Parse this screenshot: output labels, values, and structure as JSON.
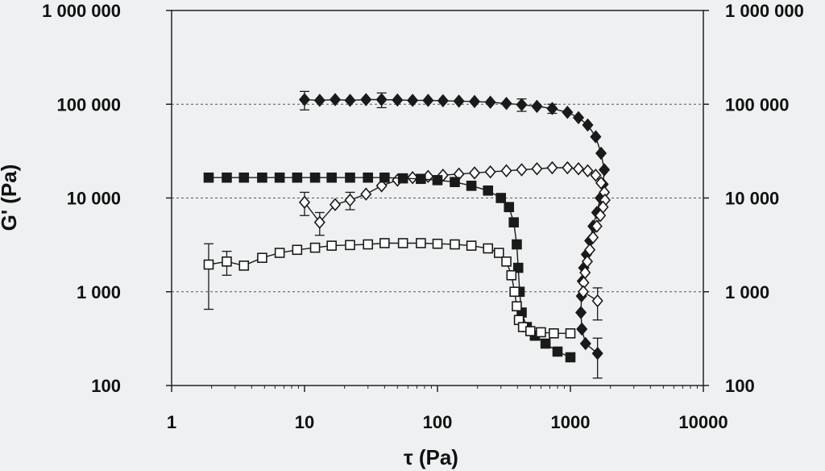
{
  "chart_data": {
    "type": "scatter",
    "xlabel": "τ (Pa)",
    "ylabel": "G' (Pa)",
    "x_scale": "log",
    "y_scale": "log",
    "xlim": [
      1,
      10000
    ],
    "ylim": [
      100,
      1000000
    ],
    "x_tick_labels": [
      "1",
      "10",
      "100",
      "1000",
      "10000"
    ],
    "y_tick_labels": [
      "100",
      "1 000",
      "10 000",
      "100 000",
      "1 000 000"
    ],
    "y_tick_values": [
      100,
      1000,
      10000,
      100000,
      1000000
    ],
    "grid": "horizontal dashed",
    "series": [
      {
        "marker": "filled-diamond",
        "color": "#1a1a1a",
        "points": [
          [
            10,
            112000,
            25000
          ],
          [
            13,
            110000,
            0
          ],
          [
            17,
            112000,
            0
          ],
          [
            22,
            110000,
            0
          ],
          [
            29,
            112000,
            0
          ],
          [
            38,
            112000,
            20000
          ],
          [
            50,
            111000,
            0
          ],
          [
            65,
            110000,
            0
          ],
          [
            85,
            110000,
            0
          ],
          [
            110,
            109000,
            0
          ],
          [
            145,
            108000,
            0
          ],
          [
            190,
            107000,
            0
          ],
          [
            250,
            105000,
            0
          ],
          [
            330,
            102000,
            0
          ],
          [
            430,
            99000,
            15000
          ],
          [
            560,
            95000,
            0
          ],
          [
            730,
            90000,
            10000
          ],
          [
            950,
            82000,
            0
          ],
          [
            1150,
            72000,
            0
          ],
          [
            1350,
            60000,
            0
          ],
          [
            1550,
            45000,
            0
          ],
          [
            1700,
            30000,
            0
          ],
          [
            1800,
            20000,
            0
          ],
          [
            1760,
            14000,
            0
          ],
          [
            1680,
            10000,
            0
          ],
          [
            1580,
            7000,
            0
          ],
          [
            1480,
            5000,
            0
          ],
          [
            1400,
            3500,
            0
          ],
          [
            1320,
            2500,
            0
          ],
          [
            1260,
            1800,
            0
          ],
          [
            1230,
            1300,
            0
          ],
          [
            1210,
            900,
            0
          ],
          [
            1200,
            600,
            0
          ],
          [
            1220,
            400,
            0
          ],
          [
            1300,
            280,
            0
          ],
          [
            1600,
            220,
            100
          ]
        ]
      },
      {
        "marker": "open-diamond",
        "color": "#1a1a1a",
        "points": [
          [
            10,
            9000,
            2500
          ],
          [
            13,
            5500,
            1500
          ],
          [
            17,
            8500,
            0
          ],
          [
            22,
            9500,
            2000
          ],
          [
            29,
            11000,
            0
          ],
          [
            38,
            13500,
            0
          ],
          [
            50,
            15500,
            0
          ],
          [
            65,
            16500,
            0
          ],
          [
            85,
            17000,
            0
          ],
          [
            110,
            17500,
            0
          ],
          [
            145,
            18000,
            0
          ],
          [
            190,
            18500,
            0
          ],
          [
            250,
            19000,
            0
          ],
          [
            330,
            19500,
            0
          ],
          [
            430,
            20000,
            0
          ],
          [
            560,
            20500,
            0
          ],
          [
            730,
            21000,
            0
          ],
          [
            950,
            21000,
            0
          ],
          [
            1150,
            20500,
            0
          ],
          [
            1350,
            19500,
            0
          ],
          [
            1550,
            17500,
            0
          ],
          [
            1700,
            14500,
            0
          ],
          [
            1800,
            11500,
            0
          ],
          [
            1820,
            9500,
            0
          ],
          [
            1760,
            8000,
            0
          ],
          [
            1680,
            6500,
            0
          ],
          [
            1580,
            5000,
            0
          ],
          [
            1480,
            3800,
            0
          ],
          [
            1400,
            2800,
            0
          ],
          [
            1340,
            2100,
            0
          ],
          [
            1290,
            1600,
            0
          ],
          [
            1260,
            1250,
            0
          ],
          [
            1250,
            1000,
            0
          ],
          [
            1600,
            800,
            300
          ]
        ]
      },
      {
        "marker": "filled-square",
        "color": "#1a1a1a",
        "points": [
          [
            1.9,
            16500,
            0
          ],
          [
            2.6,
            16500,
            0
          ],
          [
            3.5,
            16500,
            0
          ],
          [
            4.8,
            16500,
            0
          ],
          [
            6.5,
            16500,
            0
          ],
          [
            8.8,
            16500,
            0
          ],
          [
            12,
            16500,
            0
          ],
          [
            16,
            16500,
            0
          ],
          [
            22,
            16500,
            0
          ],
          [
            30,
            16500,
            0
          ],
          [
            40,
            16500,
            0
          ],
          [
            55,
            16200,
            0
          ],
          [
            75,
            16000,
            0
          ],
          [
            100,
            15500,
            0
          ],
          [
            135,
            14800,
            0
          ],
          [
            180,
            13500,
            0
          ],
          [
            240,
            12000,
            0
          ],
          [
            300,
            10000,
            0
          ],
          [
            345,
            8000,
            0
          ],
          [
            375,
            5500,
            0
          ],
          [
            395,
            3200,
            0
          ],
          [
            405,
            1800,
            0
          ],
          [
            415,
            1000,
            0
          ],
          [
            430,
            600,
            0
          ],
          [
            470,
            420,
            0
          ],
          [
            540,
            340,
            0
          ],
          [
            650,
            280,
            0
          ],
          [
            800,
            230,
            0
          ],
          [
            1000,
            200,
            0
          ]
        ]
      },
      {
        "marker": "open-square",
        "color": "#1a1a1a",
        "points": [
          [
            1.9,
            1950,
            1300
          ],
          [
            2.6,
            2100,
            600
          ],
          [
            3.5,
            1900,
            0
          ],
          [
            4.8,
            2300,
            0
          ],
          [
            6.5,
            2600,
            0
          ],
          [
            8.8,
            2800,
            0
          ],
          [
            12,
            2950,
            0
          ],
          [
            16,
            3100,
            0
          ],
          [
            22,
            3150,
            0
          ],
          [
            30,
            3200,
            0
          ],
          [
            40,
            3300,
            0
          ],
          [
            55,
            3300,
            0
          ],
          [
            75,
            3300,
            0
          ],
          [
            100,
            3250,
            0
          ],
          [
            135,
            3200,
            0
          ],
          [
            180,
            3100,
            0
          ],
          [
            240,
            2900,
            0
          ],
          [
            290,
            2600,
            0
          ],
          [
            330,
            2100,
            0
          ],
          [
            360,
            1500,
            0
          ],
          [
            380,
            1000,
            0
          ],
          [
            395,
            700,
            0
          ],
          [
            410,
            500,
            0
          ],
          [
            440,
            420,
            0
          ],
          [
            500,
            380,
            0
          ],
          [
            600,
            370,
            0
          ],
          [
            750,
            360,
            0
          ],
          [
            1000,
            360,
            0
          ]
        ]
      }
    ]
  }
}
